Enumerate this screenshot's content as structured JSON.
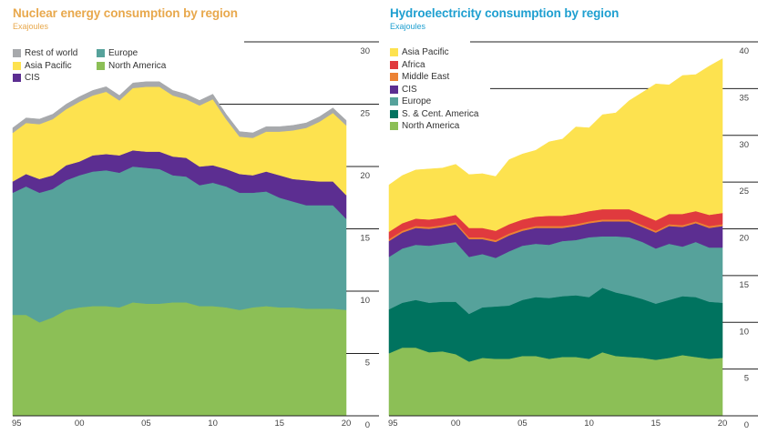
{
  "chart_data": [
    {
      "id": "nuclear",
      "type": "area",
      "stacked": true,
      "title": "Nuclear energy consumption by region",
      "subtitle": "Exajoules",
      "xlabel": "",
      "ylabel": "Exajoules",
      "x": [
        1995,
        1996,
        1997,
        1998,
        1999,
        2000,
        2001,
        2002,
        2003,
        2004,
        2005,
        2006,
        2007,
        2008,
        2009,
        2010,
        2011,
        2012,
        2013,
        2014,
        2015,
        2016,
        2017,
        2018,
        2019,
        2020
      ],
      "x_tick_labels": [
        "95",
        "00",
        "05",
        "10",
        "15",
        "20"
      ],
      "x_tick_values": [
        1995,
        2000,
        2005,
        2010,
        2015,
        2020
      ],
      "ylim": [
        0,
        30
      ],
      "y_ticks": [
        0,
        5,
        10,
        15,
        20,
        25,
        30
      ],
      "y_tick_labels": [
        "0",
        "5",
        "10",
        "15",
        "20",
        "25",
        "30"
      ],
      "gridlines": [
        20,
        25,
        30
      ],
      "y_axis_side": "right",
      "legend_position": "top-left",
      "series": [
        {
          "name": "North America",
          "color": "#8cbf56",
          "values": [
            8.1,
            8.1,
            7.5,
            7.9,
            8.5,
            8.7,
            8.8,
            8.8,
            8.7,
            9.1,
            9.0,
            9.0,
            9.1,
            9.1,
            8.8,
            8.8,
            8.7,
            8.5,
            8.7,
            8.8,
            8.7,
            8.7,
            8.6,
            8.6,
            8.6,
            8.5
          ]
        },
        {
          "name": "Europe",
          "color": "#56a29b",
          "values": [
            9.8,
            10.3,
            10.4,
            10.3,
            10.4,
            10.6,
            10.8,
            10.9,
            10.8,
            10.9,
            10.9,
            10.8,
            10.2,
            10.1,
            9.7,
            9.9,
            9.7,
            9.4,
            9.2,
            9.2,
            8.8,
            8.5,
            8.3,
            8.3,
            8.3,
            7.3
          ]
        },
        {
          "name": "CIS",
          "color": "#5c2e91",
          "values": [
            0.9,
            1.0,
            1.1,
            1.1,
            1.2,
            1.1,
            1.3,
            1.3,
            1.4,
            1.3,
            1.3,
            1.4,
            1.5,
            1.5,
            1.5,
            1.4,
            1.4,
            1.5,
            1.4,
            1.6,
            1.8,
            1.8,
            2.0,
            1.9,
            1.9,
            1.9
          ]
        },
        {
          "name": "Asia Pacific",
          "color": "#fde24f",
          "values": [
            3.9,
            4.1,
            4.4,
            4.5,
            4.5,
            4.8,
            4.8,
            5.0,
            4.4,
            5.0,
            5.2,
            5.2,
            4.9,
            4.7,
            4.9,
            5.3,
            4.0,
            3.0,
            3.0,
            3.2,
            3.5,
            3.9,
            4.2,
            4.8,
            5.5,
            5.6
          ]
        },
        {
          "name": "Rest of world",
          "color": "#a7a9ac",
          "values": [
            0.4,
            0.4,
            0.4,
            0.4,
            0.4,
            0.4,
            0.4,
            0.4,
            0.4,
            0.4,
            0.4,
            0.4,
            0.4,
            0.4,
            0.4,
            0.4,
            0.4,
            0.4,
            0.4,
            0.4,
            0.4,
            0.4,
            0.4,
            0.4,
            0.4,
            0.4
          ]
        }
      ],
      "legend_order": [
        "Rest of world",
        "Europe",
        "Asia Pacific",
        "North America",
        "CIS"
      ]
    },
    {
      "id": "hydro",
      "type": "area",
      "stacked": true,
      "title": "Hydroelectricity consumption by region",
      "subtitle": "Exajoules",
      "xlabel": "",
      "ylabel": "Exajoules",
      "x": [
        1995,
        1996,
        1997,
        1998,
        1999,
        2000,
        2001,
        2002,
        2003,
        2004,
        2005,
        2006,
        2007,
        2008,
        2009,
        2010,
        2011,
        2012,
        2013,
        2014,
        2015,
        2016,
        2017,
        2018,
        2019,
        2020
      ],
      "x_tick_labels": [
        "95",
        "00",
        "05",
        "10",
        "15",
        "20"
      ],
      "x_tick_values": [
        1995,
        2000,
        2005,
        2010,
        2015,
        2020
      ],
      "ylim": [
        0,
        40
      ],
      "y_ticks": [
        0,
        5,
        10,
        15,
        20,
        25,
        30,
        35,
        40
      ],
      "y_tick_labels": [
        "0",
        "5",
        "10",
        "15",
        "20",
        "25",
        "30",
        "35",
        "40"
      ],
      "gridlines": [
        20,
        25,
        30,
        35,
        40
      ],
      "y_axis_side": "right",
      "legend_position": "top-left",
      "series": [
        {
          "name": "North America",
          "color": "#8cbf56",
          "values": [
            6.7,
            7.3,
            7.3,
            6.8,
            6.9,
            6.6,
            5.8,
            6.2,
            6.1,
            6.1,
            6.4,
            6.4,
            6.1,
            6.3,
            6.3,
            6.1,
            6.8,
            6.4,
            6.3,
            6.2,
            6.0,
            6.2,
            6.5,
            6.3,
            6.1,
            6.2
          ]
        },
        {
          "name": "S. & Cent. America",
          "color": "#00735f",
          "values": [
            4.7,
            4.8,
            5.1,
            5.3,
            5.3,
            5.6,
            5.1,
            5.4,
            5.6,
            5.7,
            6.0,
            6.3,
            6.5,
            6.5,
            6.6,
            6.6,
            6.9,
            6.8,
            6.6,
            6.3,
            6.0,
            6.2,
            6.3,
            6.4,
            6.1,
            5.9
          ]
        },
        {
          "name": "Europe",
          "color": "#56a29b",
          "values": [
            5.6,
            5.8,
            5.9,
            6.1,
            6.2,
            6.4,
            6.1,
            5.7,
            5.2,
            5.8,
            5.8,
            5.7,
            5.7,
            5.9,
            5.9,
            6.4,
            5.5,
            6.0,
            6.2,
            6.1,
            5.9,
            6.0,
            5.3,
            5.9,
            5.8,
            5.9
          ]
        },
        {
          "name": "CIS",
          "color": "#5c2e91",
          "values": [
            1.7,
            1.7,
            1.8,
            1.8,
            1.8,
            1.9,
            1.9,
            1.6,
            1.7,
            1.7,
            1.6,
            1.7,
            1.8,
            1.4,
            1.5,
            1.5,
            1.6,
            1.6,
            1.7,
            1.6,
            1.7,
            1.9,
            2.1,
            2.0,
            2.1,
            2.3
          ]
        },
        {
          "name": "Middle East",
          "color": "#ec8234",
          "values": [
            0.2,
            0.2,
            0.2,
            0.2,
            0.2,
            0.2,
            0.2,
            0.2,
            0.2,
            0.2,
            0.2,
            0.2,
            0.2,
            0.2,
            0.2,
            0.2,
            0.2,
            0.2,
            0.2,
            0.2,
            0.2,
            0.2,
            0.2,
            0.2,
            0.2,
            0.2
          ]
        },
        {
          "name": "Africa",
          "color": "#e03a3e",
          "values": [
            0.8,
            0.8,
            0.8,
            0.8,
            0.8,
            0.8,
            1.0,
            1.0,
            1.0,
            1.0,
            1.0,
            1.0,
            1.1,
            1.1,
            1.1,
            1.1,
            1.1,
            1.1,
            1.1,
            1.1,
            1.1,
            1.1,
            1.2,
            1.1,
            1.2,
            1.2
          ]
        },
        {
          "name": "Asia Pacific",
          "color": "#fde24f",
          "values": [
            5.0,
            5.1,
            5.2,
            5.4,
            5.3,
            5.4,
            5.7,
            5.8,
            5.8,
            6.9,
            7.0,
            7.1,
            7.9,
            8.2,
            9.3,
            8.9,
            10.1,
            10.3,
            11.6,
            13.1,
            14.6,
            13.8,
            14.8,
            14.6,
            15.9,
            16.5
          ]
        }
      ],
      "legend_order": [
        "Asia Pacific",
        "Africa",
        "Middle East",
        "CIS",
        "Europe",
        "S. & Cent. America",
        "North America"
      ]
    }
  ]
}
